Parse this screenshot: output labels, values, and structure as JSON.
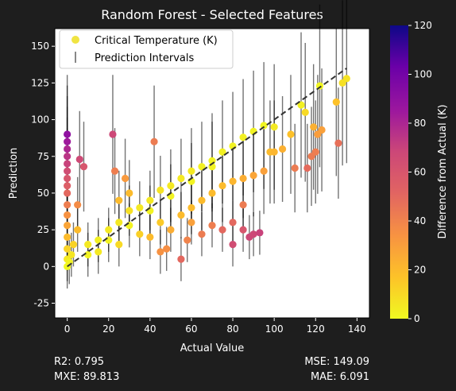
{
  "chart_data": {
    "type": "scatter",
    "title": "Random Forest - Selected Features",
    "xlabel": "Actual Value",
    "ylabel": "Prediction",
    "xlim": [
      -6,
      146
    ],
    "ylim": [
      -35,
      162
    ],
    "x_ticks": [
      0,
      20,
      40,
      60,
      80,
      100,
      120,
      140
    ],
    "y_ticks": [
      -25,
      0,
      25,
      50,
      75,
      100,
      125,
      150
    ],
    "grid": false,
    "legend_position": "top-left",
    "legend": [
      {
        "label": "Critical Temperature (K)",
        "marker": "dot",
        "color": "#f0e442"
      },
      {
        "label": "Prediction Intervals",
        "marker": "vline",
        "color": "#888888"
      }
    ],
    "reference_line": {
      "label": "y = x",
      "style": "dashed",
      "color": "#333333",
      "from": [
        0,
        0
      ],
      "to": [
        135,
        135
      ]
    },
    "colorbar": {
      "label": "Difference from Actual (K)",
      "range": [
        0,
        120
      ],
      "ticks": [
        0,
        20,
        40,
        60,
        80,
        100,
        120
      ],
      "colormap": "plasma_r"
    },
    "series": [
      {
        "points": [
          [
            0,
            5,
            5
          ],
          [
            0,
            12,
            12
          ],
          [
            0,
            20,
            20
          ],
          [
            0,
            28,
            28
          ],
          [
            0,
            35,
            35
          ],
          [
            0,
            42,
            42
          ],
          [
            0,
            50,
            50
          ],
          [
            0,
            55,
            55
          ],
          [
            0,
            60,
            60
          ],
          [
            0,
            65,
            65
          ],
          [
            0,
            70,
            70
          ],
          [
            0,
            75,
            75
          ],
          [
            0,
            80,
            80
          ],
          [
            0,
            85,
            85
          ],
          [
            0,
            90,
            90
          ],
          [
            0,
            0,
            0
          ],
          [
            1,
            3,
            2
          ],
          [
            2,
            8,
            6
          ],
          [
            3,
            15,
            12
          ],
          [
            5,
            25,
            20
          ],
          [
            5,
            42,
            37
          ],
          [
            6,
            73,
            67
          ],
          [
            8,
            68,
            60
          ],
          [
            22,
            90,
            68
          ],
          [
            23,
            65,
            42
          ],
          [
            25,
            45,
            20
          ],
          [
            28,
            60,
            32
          ],
          [
            30,
            50,
            20
          ],
          [
            10,
            15,
            5
          ],
          [
            15,
            18,
            3
          ],
          [
            20,
            25,
            5
          ],
          [
            25,
            30,
            5
          ],
          [
            30,
            38,
            8
          ],
          [
            35,
            40,
            5
          ],
          [
            40,
            45,
            5
          ],
          [
            45,
            52,
            7
          ],
          [
            50,
            55,
            5
          ],
          [
            55,
            60,
            5
          ],
          [
            60,
            65,
            5
          ],
          [
            65,
            68,
            3
          ],
          [
            70,
            72,
            2
          ],
          [
            75,
            78,
            3
          ],
          [
            80,
            82,
            2
          ],
          [
            85,
            88,
            3
          ],
          [
            90,
            92,
            2
          ],
          [
            95,
            96,
            1
          ],
          [
            100,
            95,
            5
          ],
          [
            10,
            8,
            2
          ],
          [
            20,
            18,
            2
          ],
          [
            30,
            28,
            2
          ],
          [
            40,
            38,
            2
          ],
          [
            50,
            48,
            2
          ],
          [
            60,
            58,
            2
          ],
          [
            70,
            68,
            2
          ],
          [
            15,
            10,
            5
          ],
          [
            25,
            15,
            10
          ],
          [
            35,
            22,
            13
          ],
          [
            45,
            30,
            15
          ],
          [
            55,
            35,
            20
          ],
          [
            60,
            40,
            20
          ],
          [
            65,
            45,
            20
          ],
          [
            70,
            50,
            20
          ],
          [
            75,
            55,
            20
          ],
          [
            80,
            58,
            22
          ],
          [
            85,
            60,
            25
          ],
          [
            90,
            62,
            28
          ],
          [
            95,
            65,
            30
          ],
          [
            40,
            20,
            20
          ],
          [
            50,
            25,
            25
          ],
          [
            60,
            30,
            30
          ],
          [
            65,
            22,
            43
          ],
          [
            70,
            28,
            42
          ],
          [
            75,
            25,
            50
          ],
          [
            80,
            30,
            50
          ],
          [
            85,
            42,
            43
          ],
          [
            85,
            25,
            60
          ],
          [
            88,
            20,
            68
          ],
          [
            90,
            22,
            68
          ],
          [
            93,
            23,
            70
          ],
          [
            80,
            15,
            65
          ],
          [
            48,
            12,
            36
          ],
          [
            42,
            85,
            43
          ],
          [
            45,
            10,
            35
          ],
          [
            55,
            5,
            50
          ],
          [
            58,
            18,
            40
          ],
          [
            98,
            78,
            20
          ],
          [
            100,
            78,
            22
          ],
          [
            104,
            80,
            24
          ],
          [
            108,
            90,
            18
          ],
          [
            110,
            67,
            43
          ],
          [
            113,
            110,
            3
          ],
          [
            115,
            105,
            10
          ],
          [
            116,
            67,
            49
          ],
          [
            118,
            75,
            43
          ],
          [
            119,
            95,
            24
          ],
          [
            120,
            78,
            42
          ],
          [
            121,
            90,
            31
          ],
          [
            123,
            93,
            30
          ],
          [
            122,
            123,
            1
          ],
          [
            130,
            112,
            18
          ],
          [
            131,
            84,
            47
          ],
          [
            133,
            125,
            8
          ],
          [
            135,
            128,
            7
          ]
        ]
      }
    ]
  },
  "metrics": {
    "r2": "R2: 0.795",
    "mxe": "MXE: 89.813",
    "mse": "MSE: 149.09",
    "mae": "MAE: 6.091"
  }
}
